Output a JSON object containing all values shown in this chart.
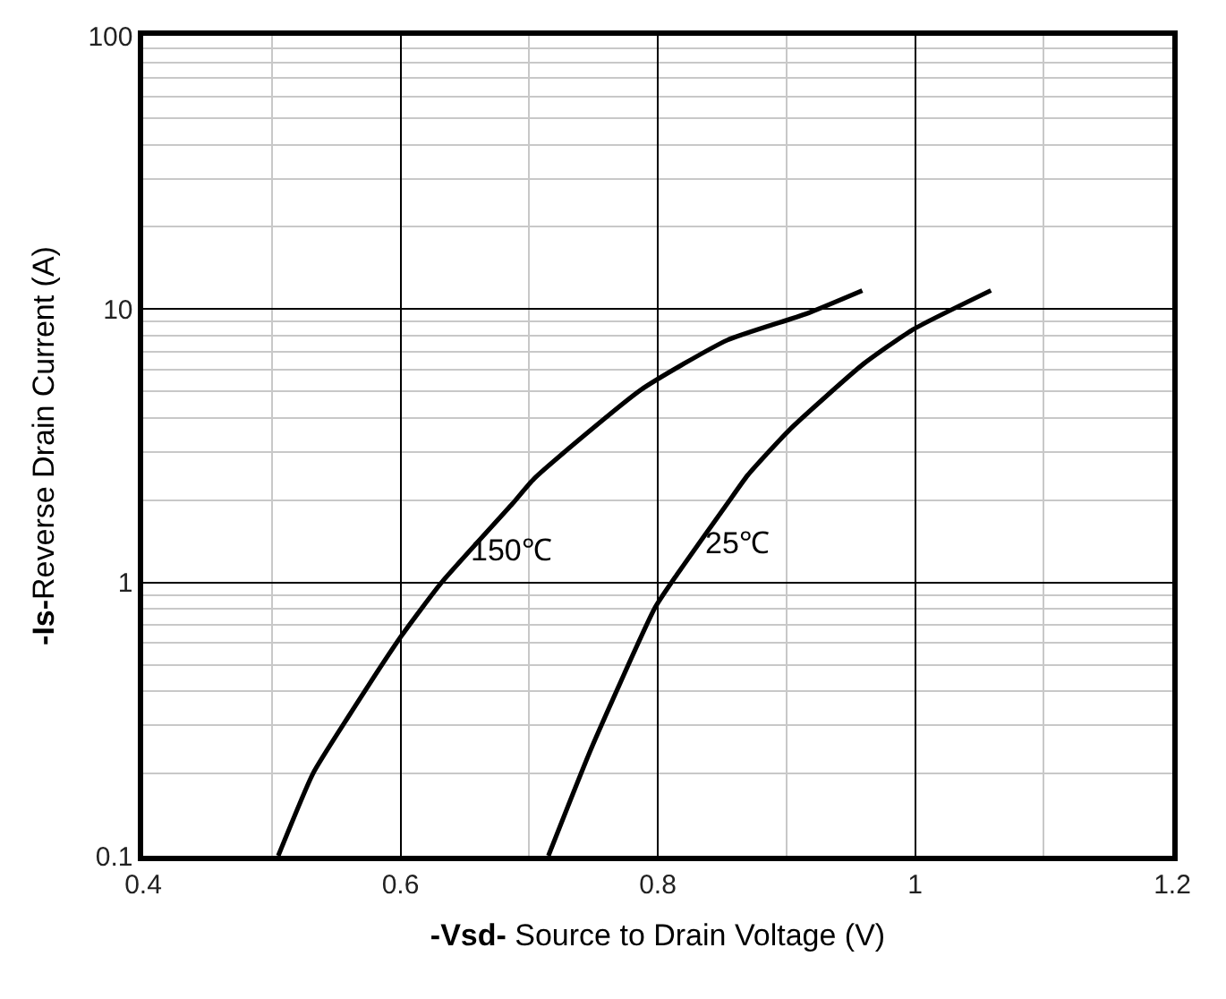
{
  "chart_data": {
    "type": "line",
    "xlabel": "-Vsd- Source to Drain Voltage (V)",
    "ylabel": "-Is-Reverse Drain Current (A)",
    "series": [
      {
        "name": "150℃",
        "color": "#000000",
        "x": [
          0.505,
          0.532,
          0.559,
          0.601,
          0.632,
          0.687,
          0.704,
          0.787,
          0.854,
          0.915,
          0.959
        ],
        "values": [
          0.1,
          0.2,
          0.32,
          0.64,
          1.0,
          1.94,
          2.4,
          5.07,
          7.7,
          9.6,
          11.7
        ]
      },
      {
        "name": "25℃",
        "color": "#000000",
        "x": [
          0.715,
          0.748,
          0.798,
          0.815,
          0.854,
          0.87,
          0.903,
          0.959,
          0.998,
          1.059
        ],
        "values": [
          0.1,
          0.245,
          0.81,
          1.07,
          1.94,
          2.47,
          3.64,
          6.25,
          8.4,
          11.7
        ]
      }
    ],
    "xlim": [
      0.4,
      1.2
    ],
    "xticks": [
      0.4,
      0.6,
      0.8,
      1,
      1.2
    ],
    "ylim": [
      0.1,
      100
    ],
    "yticks": [
      0.1,
      1,
      10,
      100
    ],
    "log": "y",
    "grid": true,
    "line_style": "solid",
    "marker": "none",
    "legend": false
  }
}
